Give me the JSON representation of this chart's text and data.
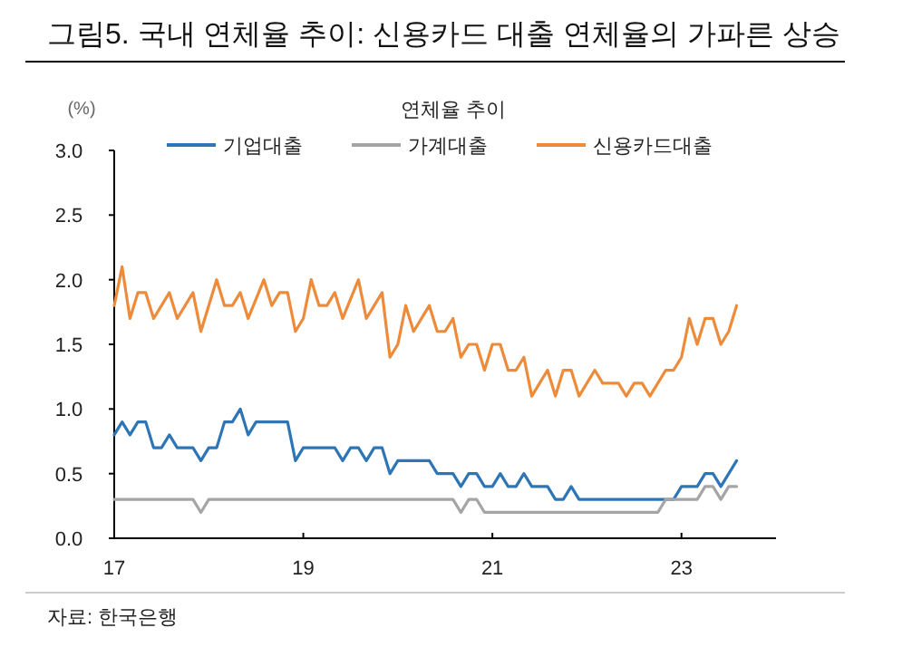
{
  "chart_data": {
    "type": "line",
    "title": "그림5.   국내 연체율 추이: 신용카드 대출 연체율의 가파른 상승",
    "subtitle": "연체율 추이",
    "ylabel": "(%)",
    "annotations": [
      "자료: 한국은행"
    ],
    "xlim": [
      "2017-01",
      "2024-01"
    ],
    "xticks": [
      {
        "value": "2017-01",
        "label": "17"
      },
      {
        "value": "2019-01",
        "label": "19"
      },
      {
        "value": "2021-01",
        "label": "21"
      },
      {
        "value": "2023-01",
        "label": "23"
      }
    ],
    "ylim": [
      0,
      3
    ],
    "yticks": [
      {
        "value": 0,
        "label": "0.0"
      },
      {
        "value": 0.5,
        "label": "0.5"
      },
      {
        "value": 1,
        "label": "1.0"
      },
      {
        "value": 1.5,
        "label": "1.5"
      },
      {
        "value": 2,
        "label": "2.0"
      },
      {
        "value": 2.5,
        "label": "2.5"
      },
      {
        "value": 3,
        "label": "3.0"
      }
    ],
    "legend": "top",
    "marker": "none",
    "line_style": "solid",
    "series": [
      {
        "name": "기업대출",
        "color": "#2e75b6",
        "x": [
          "2017-01",
          "2017-02",
          "2017-03",
          "2017-04",
          "2017-05",
          "2017-06",
          "2017-07",
          "2017-08",
          "2017-09",
          "2017-11",
          "2017-12",
          "2018-01",
          "2018-02",
          "2018-03",
          "2018-04",
          "2018-05",
          "2018-06",
          "2018-07",
          "2018-11",
          "2018-12",
          "2019-01",
          "2019-05",
          "2019-06",
          "2019-07",
          "2019-08",
          "2019-09",
          "2019-10",
          "2019-11",
          "2019-12",
          "2020-01",
          "2020-05",
          "2020-06",
          "2020-08",
          "2020-09",
          "2020-10",
          "2020-11",
          "2020-12",
          "2021-01",
          "2021-02",
          "2021-03",
          "2021-04",
          "2021-05",
          "2021-06",
          "2021-08",
          "2021-09",
          "2021-10",
          "2021-11",
          "2021-12",
          "2022-12",
          "2023-01",
          "2023-03",
          "2023-04",
          "2023-05",
          "2023-06",
          "2023-07",
          "2023-08"
        ],
        "values": [
          0.8,
          0.9,
          0.8,
          0.9,
          0.9,
          0.7,
          0.7,
          0.8,
          0.7,
          0.7,
          0.6,
          0.7,
          0.7,
          0.9,
          0.9,
          1.0,
          0.8,
          0.9,
          0.9,
          0.6,
          0.7,
          0.7,
          0.6,
          0.7,
          0.7,
          0.6,
          0.7,
          0.7,
          0.5,
          0.6,
          0.6,
          0.5,
          0.5,
          0.4,
          0.5,
          0.5,
          0.4,
          0.4,
          0.5,
          0.4,
          0.4,
          0.5,
          0.4,
          0.4,
          0.3,
          0.3,
          0.4,
          0.3,
          0.3,
          0.4,
          0.4,
          0.5,
          0.5,
          0.4,
          0.5,
          0.6
        ]
      },
      {
        "name": "가계대출",
        "color": "#a5a5a5",
        "x": [
          "2017-01",
          "2017-11",
          "2017-12",
          "2018-01",
          "2020-08",
          "2020-09",
          "2020-10",
          "2020-11",
          "2020-12",
          "2022-10",
          "2022-11",
          "2023-03",
          "2023-04",
          "2023-05",
          "2023-06",
          "2023-07",
          "2023-08"
        ],
        "values": [
          0.3,
          0.3,
          0.2,
          0.3,
          0.3,
          0.2,
          0.3,
          0.3,
          0.2,
          0.2,
          0.3,
          0.3,
          0.4,
          0.4,
          0.3,
          0.4,
          0.4
        ]
      },
      {
        "name": "신용카드대출",
        "color": "#ed8b3a",
        "x": [
          "2017-01",
          "2017-02",
          "2017-03",
          "2017-04",
          "2017-05",
          "2017-06",
          "2017-08",
          "2017-09",
          "2017-11",
          "2017-12",
          "2018-02",
          "2018-03",
          "2018-04",
          "2018-05",
          "2018-06",
          "2018-08",
          "2018-09",
          "2018-10",
          "2018-11",
          "2018-12",
          "2019-01",
          "2019-02",
          "2019-03",
          "2019-04",
          "2019-05",
          "2019-06",
          "2019-08",
          "2019-09",
          "2019-11",
          "2019-12",
          "2020-01",
          "2020-02",
          "2020-03",
          "2020-05",
          "2020-06",
          "2020-07",
          "2020-08",
          "2020-09",
          "2020-10",
          "2020-11",
          "2020-12",
          "2021-01",
          "2021-02",
          "2021-03",
          "2021-04",
          "2021-05",
          "2021-06",
          "2021-08",
          "2021-09",
          "2021-10",
          "2021-11",
          "2021-12",
          "2022-02",
          "2022-03",
          "2022-04",
          "2022-05",
          "2022-06",
          "2022-07",
          "2022-08",
          "2022-09",
          "2022-11",
          "2022-12",
          "2023-01",
          "2023-02",
          "2023-03",
          "2023-04",
          "2023-05",
          "2023-06",
          "2023-07",
          "2023-08"
        ],
        "values": [
          1.8,
          2.1,
          1.7,
          1.9,
          1.9,
          1.7,
          1.9,
          1.7,
          1.9,
          1.6,
          2.0,
          1.8,
          1.8,
          1.9,
          1.7,
          2.0,
          1.8,
          1.9,
          1.9,
          1.6,
          1.7,
          2.0,
          1.8,
          1.8,
          1.9,
          1.7,
          2.0,
          1.7,
          1.9,
          1.4,
          1.5,
          1.8,
          1.6,
          1.8,
          1.6,
          1.6,
          1.7,
          1.4,
          1.5,
          1.5,
          1.3,
          1.5,
          1.5,
          1.3,
          1.3,
          1.4,
          1.1,
          1.3,
          1.1,
          1.3,
          1.3,
          1.1,
          1.3,
          1.2,
          1.2,
          1.2,
          1.1,
          1.2,
          1.2,
          1.1,
          1.3,
          1.3,
          1.4,
          1.7,
          1.5,
          1.7,
          1.7,
          1.5,
          1.6,
          1.8
        ]
      }
    ]
  }
}
